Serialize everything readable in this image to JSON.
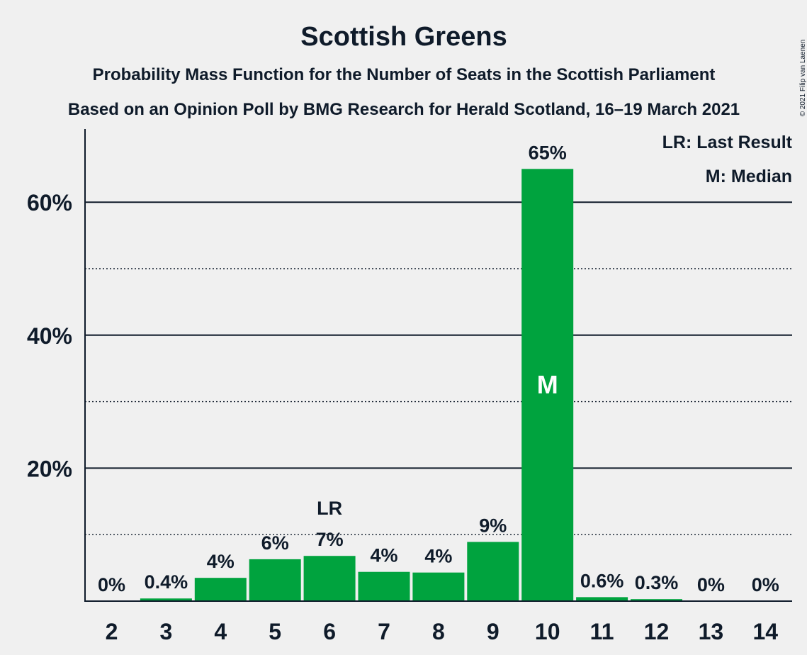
{
  "chart_data": {
    "type": "bar",
    "title": "Scottish Greens",
    "subtitle": "Probability Mass Function for the Number of Seats in the Scottish Parliament",
    "subtitle2": "Based on an Opinion Poll by BMG Research for Herald Scotland, 16–19 March 2021",
    "copyright": "© 2021 Filip van Laenen",
    "categories": [
      "2",
      "3",
      "4",
      "5",
      "6",
      "7",
      "8",
      "9",
      "10",
      "11",
      "12",
      "13",
      "14"
    ],
    "values": [
      0,
      0.4,
      3.5,
      6.3,
      6.8,
      4.4,
      4.3,
      8.9,
      65,
      0.6,
      0.3,
      0,
      0
    ],
    "value_labels": [
      "0%",
      "0.4%",
      "4%",
      "6%",
      "7%",
      "4%",
      "4%",
      "9%",
      "65%",
      "0.6%",
      "0.3%",
      "0%",
      "0%"
    ],
    "ylim": [
      0,
      70
    ],
    "y_ticks": [
      {
        "value": 20,
        "label": "20%"
      },
      {
        "value": 40,
        "label": "40%"
      },
      {
        "value": 60,
        "label": "60%"
      }
    ],
    "y_minor_gridlines": [
      10,
      30,
      50
    ],
    "xlabel": "",
    "ylabel": "",
    "last_result": {
      "category": "6",
      "label": "LR"
    },
    "median": {
      "category": "10",
      "label": "M"
    },
    "legend": {
      "position": "top-right",
      "items": [
        "LR: Last Result",
        "M: Median"
      ]
    },
    "bar_color": "#00a33e",
    "grid": true
  }
}
